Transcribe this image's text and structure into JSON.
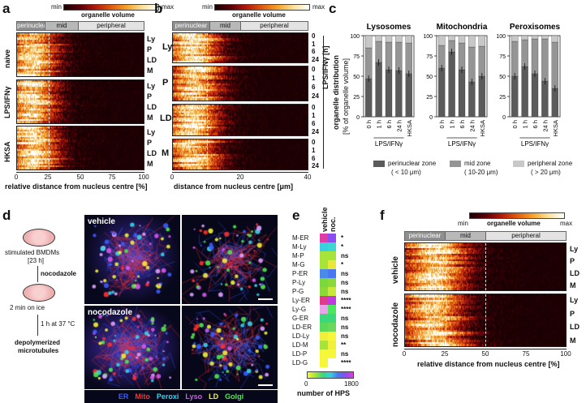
{
  "panels": {
    "a": "a",
    "b": "b",
    "c": "c",
    "d": "d",
    "e": "e",
    "f": "f"
  },
  "colorbar": {
    "min": "min",
    "max": "max",
    "label": "organelle volume"
  },
  "zones": {
    "perinuclear": "perinuclear",
    "mid": "mid",
    "peripheral": "peripheral"
  },
  "panel_a": {
    "groups": [
      "naive",
      "LPS/IFNγ",
      "HKSA"
    ],
    "rows": [
      "Ly",
      "P",
      "LD",
      "M"
    ],
    "xlabel": "relative distance from nucleus centre [%]",
    "ticks": [
      "0",
      "25",
      "50",
      "75",
      "100"
    ]
  },
  "panel_b": {
    "groups": [
      "Ly",
      "P",
      "LD",
      "M"
    ],
    "times": [
      "0",
      "1",
      "6",
      "24"
    ],
    "side_label": "LPS/IFNγ [h]",
    "xlabel": "distance from nucleus centre [μm]",
    "ticks": [
      "0",
      "20",
      "40"
    ]
  },
  "chart_data": [
    {
      "type": "bar",
      "title": "Lysosomes",
      "ylabel": "organelle distribution [% of organelle volume]",
      "ylim": [
        0,
        100
      ],
      "categories": [
        "0 h",
        "1 h",
        "6 h",
        "24 h",
        "HKSA"
      ],
      "series": [
        {
          "name": "perinuclear zone (< 10 µm)",
          "values": [
            47,
            67,
            58,
            57,
            53
          ]
        },
        {
          "name": "mid zone (10-20 µm)",
          "values": [
            38,
            26,
            34,
            35,
            38
          ]
        },
        {
          "name": "peripheral zone (> 20 µm)",
          "values": [
            15,
            7,
            8,
            8,
            9
          ]
        }
      ]
    },
    {
      "type": "bar",
      "title": "Mitochondria",
      "ylim": [
        0,
        100
      ],
      "categories": [
        "0 h",
        "1 h",
        "6 h",
        "24 h",
        "HKSA"
      ],
      "series": [
        {
          "name": "perinuclear zone (< 10 µm)",
          "values": [
            60,
            80,
            58,
            43,
            50
          ]
        },
        {
          "name": "mid zone (10-20 µm)",
          "values": [
            28,
            14,
            33,
            43,
            37
          ]
        },
        {
          "name": "peripheral zone (> 20 µm)",
          "values": [
            12,
            6,
            9,
            14,
            13
          ]
        }
      ]
    },
    {
      "type": "bar",
      "title": "Peroxisomes",
      "ylim": [
        0,
        100
      ],
      "categories": [
        "0 h",
        "1 h",
        "6 h",
        "24 h",
        "HKSA"
      ],
      "series": [
        {
          "name": "perinuclear zone (< 10 µm)",
          "values": [
            50,
            62,
            53,
            44,
            35
          ]
        },
        {
          "name": "mid zone (10-20 µm)",
          "values": [
            43,
            33,
            43,
            52,
            57
          ]
        },
        {
          "name": "peripheral zone (> 20 µm)",
          "values": [
            7,
            5,
            4,
            4,
            8
          ]
        }
      ]
    }
  ],
  "panel_c": {
    "yticks": [
      "0",
      "25",
      "50",
      "75",
      "100"
    ],
    "group_label": "LPS/IFNγ",
    "legend": [
      {
        "label": "perinuclear zone",
        "sub": "( < 10 μm)",
        "color": "#5b5b5b"
      },
      {
        "label": "mid zone",
        "sub": "( 10-20 μm)",
        "color": "#959595"
      },
      {
        "label": "peripheral zone",
        "sub": "( > 20 μm)",
        "color": "#c8c8c8"
      }
    ],
    "ylabel": "organelle distribution",
    "ylabel2": "[% of organelle volume]"
  },
  "panel_d": {
    "steps": [
      "stimulated BMDMs",
      "[23 h]",
      "nocodazole",
      "2 min on ice",
      "1 h at 37 °C",
      "depolymerized",
      "microtubules"
    ],
    "image_labels": [
      "vehicle",
      "nocodazole"
    ],
    "channels": [
      {
        "name": "ER",
        "color": "#3c5cff"
      },
      {
        "name": "Mito",
        "color": "#ff3030"
      },
      {
        "name": "Peroxi",
        "color": "#39d3e8"
      },
      {
        "name": "Lyso",
        "color": "#d858f0"
      },
      {
        "name": "LD",
        "color": "#f3f03a"
      },
      {
        "name": "Golgi",
        "color": "#4ee84e"
      }
    ]
  },
  "panel_e": {
    "columns": [
      "vehicle",
      "noc."
    ],
    "rows": [
      {
        "label": "M-ER",
        "sig": "*"
      },
      {
        "label": "M-Ly",
        "sig": "*"
      },
      {
        "label": "M-P",
        "sig": "ns"
      },
      {
        "label": "M-G",
        "sig": "*"
      },
      {
        "label": "P-ER",
        "sig": "ns"
      },
      {
        "label": "P-Ly",
        "sig": "ns"
      },
      {
        "label": "P-G",
        "sig": "ns"
      },
      {
        "label": "Ly-ER",
        "sig": "****"
      },
      {
        "label": "Ly-G",
        "sig": "****"
      },
      {
        "label": "G-ER",
        "sig": "ns"
      },
      {
        "label": "LD-ER",
        "sig": "ns"
      },
      {
        "label": "LD-Ly",
        "sig": "ns"
      },
      {
        "label": "LD-M",
        "sig": "**"
      },
      {
        "label": "LD-P",
        "sig": "ns"
      },
      {
        "label": "LD-G",
        "sig": "****"
      }
    ],
    "scale_min": "0",
    "scale_max": "1800",
    "scale_label": "number of HPS"
  },
  "panel_f": {
    "groups": [
      "vehicle",
      "nocodazole"
    ],
    "rows": [
      "Ly",
      "P",
      "LD",
      "M"
    ],
    "xlabel": "relative distance from nucleus centre [%]",
    "ticks": [
      "0",
      "25",
      "50",
      "75",
      "100"
    ]
  }
}
